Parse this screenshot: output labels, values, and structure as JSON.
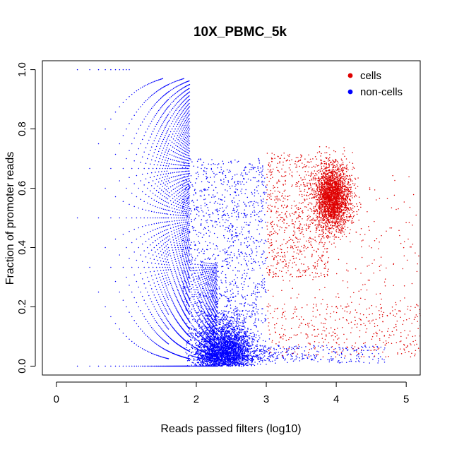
{
  "chart_data": {
    "type": "scatter",
    "title": "10X_PBMC_5k",
    "xlabel": "Reads passed filters (log10)",
    "ylabel": "Fraction of promoter reads",
    "xlim": [
      -0.2,
      5.2
    ],
    "ylim": [
      -0.03,
      1.03
    ],
    "x_ticks": [
      0,
      1,
      2,
      3,
      4,
      5
    ],
    "x_tick_labels": [
      "0",
      "1",
      "2",
      "3",
      "4",
      "5"
    ],
    "y_ticks": [
      0.0,
      0.2,
      0.4,
      0.6,
      0.8,
      1.0
    ],
    "y_tick_labels": [
      "0.0",
      "0.2",
      "0.4",
      "0.6",
      "0.8",
      "1.0"
    ],
    "grid": false,
    "legend_position": "top-right",
    "series": [
      {
        "name": "cells",
        "color": "#DF0000",
        "description": "main cluster centered near x=3.95, y=0.57 (range x 3.6-4.3, y 0.40-0.74); sparse scatter x 3.0-5.2, y 0.03-0.70",
        "cluster_center": [
          3.95,
          0.57
        ],
        "x_range": [
          3.0,
          5.2
        ],
        "y_range": [
          0.03,
          0.74
        ]
      },
      {
        "name": "non-cells",
        "color": "#0000FF",
        "description": "discrete arcs y = k/n for low read counts (x 0.3-1.9), dense cloud near x=2.4, y=0.07, diffuse scatter x 1.8-3.0, y 0.15-0.70",
        "cluster_center": [
          2.4,
          0.07
        ],
        "x_range": [
          0.3,
          4.7
        ],
        "y_range": [
          0.0,
          1.0
        ]
      }
    ]
  }
}
